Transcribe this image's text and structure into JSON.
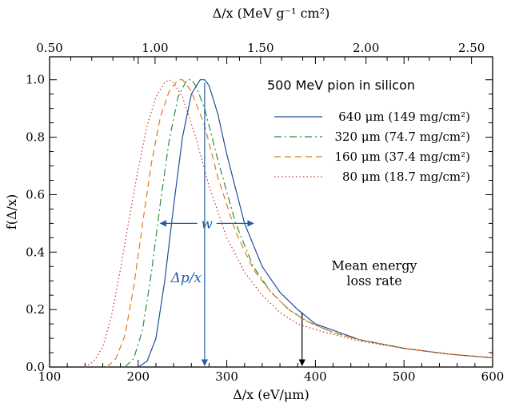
{
  "chart_data": {
    "type": "line",
    "title": "500 MeV pion in silicon",
    "xlabel": "Δ/x  (eV/μm)",
    "x2label": "Δ/x  (MeV g⁻¹ cm²)",
    "ylabel": "f(Δ/x)",
    "xlim": [
      100,
      600
    ],
    "ylim": [
      0,
      1.08
    ],
    "x2lim": [
      0.5,
      2.6
    ],
    "x_ticks": [
      "100",
      "200",
      "300",
      "400",
      "500",
      "600"
    ],
    "y_ticks": [
      "0.0",
      "0.2",
      "0.4",
      "0.6",
      "0.8",
      "1.0"
    ],
    "x2_ticks": [
      "0.50",
      "1.00",
      "1.50",
      "2.00",
      "2.50"
    ],
    "series": [
      {
        "name": "640 μm (149 mg/cm²)",
        "color": "#1f4e9c",
        "style": "solid",
        "x": [
          200,
          210,
          220,
          230,
          240,
          250,
          260,
          270,
          275,
          280,
          290,
          300,
          320,
          340,
          360,
          380,
          400,
          450,
          500,
          550,
          600
        ],
        "y": [
          0.0,
          0.02,
          0.1,
          0.3,
          0.56,
          0.8,
          0.95,
          1.0,
          1.0,
          0.98,
          0.88,
          0.74,
          0.5,
          0.35,
          0.26,
          0.2,
          0.15,
          0.095,
          0.065,
          0.045,
          0.032
        ]
      },
      {
        "name": "320 μm (74.7 mg/cm²)",
        "color": "#2e8b3c",
        "style": "dashdot",
        "x": [
          185,
          195,
          205,
          215,
          225,
          235,
          245,
          255,
          260,
          265,
          275,
          290,
          310,
          330,
          350,
          370,
          390,
          420,
          450,
          500,
          550,
          600
        ],
        "y": [
          0.0,
          0.03,
          0.13,
          0.33,
          0.57,
          0.79,
          0.94,
          1.0,
          1.0,
          0.98,
          0.9,
          0.72,
          0.5,
          0.35,
          0.26,
          0.2,
          0.16,
          0.12,
          0.095,
          0.065,
          0.045,
          0.032
        ]
      },
      {
        "name": "160 μm (37.4 mg/cm²)",
        "color": "#e07b1a",
        "style": "dashed",
        "x": [
          165,
          175,
          185,
          195,
          205,
          215,
          225,
          235,
          245,
          250,
          260,
          275,
          290,
          310,
          330,
          350,
          370,
          390,
          420,
          450,
          500,
          550,
          600
        ],
        "y": [
          0.0,
          0.03,
          0.11,
          0.28,
          0.5,
          0.71,
          0.87,
          0.96,
          1.0,
          1.0,
          0.96,
          0.84,
          0.66,
          0.47,
          0.34,
          0.26,
          0.2,
          0.16,
          0.12,
          0.095,
          0.065,
          0.045,
          0.032
        ]
      },
      {
        "name": "80 μm (18.7 mg/cm²)",
        "color": "#d0302a",
        "style": "dotted",
        "x": [
          140,
          150,
          160,
          170,
          180,
          190,
          200,
          210,
          220,
          230,
          235,
          240,
          250,
          265,
          280,
          300,
          320,
          340,
          360,
          380,
          400,
          450,
          500,
          550,
          600
        ],
        "y": [
          0.0,
          0.02,
          0.07,
          0.18,
          0.34,
          0.52,
          0.69,
          0.84,
          0.94,
          0.99,
          1.0,
          0.99,
          0.94,
          0.8,
          0.63,
          0.45,
          0.33,
          0.25,
          0.19,
          0.15,
          0.13,
          0.09,
          0.065,
          0.045,
          0.032
        ]
      }
    ],
    "annotations": {
      "width_label": "w",
      "peak_label": "Δp/x",
      "mean_label_line1": "Mean energy",
      "mean_label_line2": "loss rate",
      "peak_x": 275,
      "mean_x": 385,
      "width_y": 0.5,
      "width_x_left": 225,
      "width_x_right": 330
    },
    "grid": false,
    "legend_position": "top-right"
  }
}
